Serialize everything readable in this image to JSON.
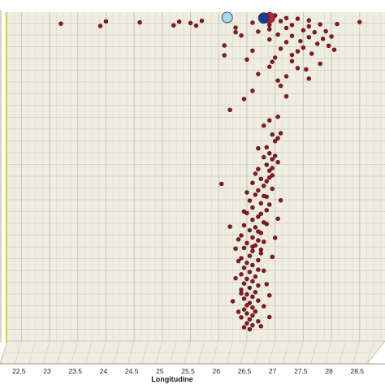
{
  "chart_data": {
    "type": "scatter",
    "xlabel": "Longitudine",
    "xlim": [
      22.25,
      28.95
    ],
    "ylim": [
      0,
      100
    ],
    "x_ticks": [
      "22.5",
      "23",
      "23.5",
      "24",
      "24.5",
      "25",
      "25.5",
      "26",
      "26.5",
      "27",
      "27.5",
      "28",
      "28.5"
    ],
    "grid": true,
    "colors": {
      "background": "#efece2",
      "grid": "#cfcbbd",
      "axis": "#d9d24a",
      "points": "#8a1a22",
      "points_edge": "#4a0a0e",
      "highlight_light": "#a8d8f0",
      "highlight_dark": "#1e3c8c",
      "highlight_red": "#c8202a"
    },
    "series": [
      {
        "role": "main-points",
        "points": [
          [
            23.2,
            96.5
          ],
          [
            23.9,
            95.8
          ],
          [
            24.0,
            97.2
          ],
          [
            24.6,
            96.9
          ],
          [
            25.2,
            96.0
          ],
          [
            25.3,
            97.1
          ],
          [
            25.5,
            96.7
          ],
          [
            25.6,
            95.9
          ],
          [
            25.7,
            97.4
          ],
          [
            26.6,
            96.8
          ],
          [
            26.8,
            97.9
          ],
          [
            27.1,
            97.3
          ],
          [
            27.3,
            96.1
          ],
          [
            27.4,
            98.0
          ],
          [
            27.6,
            97.5
          ],
          [
            27.8,
            96.3
          ],
          [
            28.1,
            96.4
          ],
          [
            28.5,
            97.0
          ],
          [
            26.9,
            94.8
          ],
          [
            27.2,
            95.2
          ],
          [
            27.5,
            94.5
          ],
          [
            27.7,
            93.9
          ],
          [
            27.9,
            94.2
          ],
          [
            26.7,
            94.1
          ],
          [
            27.05,
            93.2
          ],
          [
            27.3,
            92.8
          ],
          [
            27.6,
            92.4
          ],
          [
            27.85,
            91.9
          ],
          [
            28.0,
            92.6
          ],
          [
            26.4,
            92.9
          ],
          [
            26.9,
            91.7
          ],
          [
            27.2,
            90.9
          ],
          [
            27.45,
            91.2
          ],
          [
            27.75,
            90.4
          ],
          [
            27.95,
            89.8
          ],
          [
            26.6,
            88.3
          ],
          [
            27.1,
            88.9
          ],
          [
            27.4,
            88.1
          ],
          [
            27.65,
            87.4
          ],
          [
            28.05,
            88.6
          ],
          [
            26.5,
            85.6
          ],
          [
            27.0,
            86.2
          ],
          [
            27.3,
            85.1
          ],
          [
            27.8,
            84.3
          ],
          [
            26.9,
            83.4
          ],
          [
            27.55,
            82.6
          ],
          [
            26.7,
            81.2
          ],
          [
            27.2,
            80.5
          ],
          [
            27.6,
            79.8
          ],
          [
            27.1,
            77.6
          ],
          [
            26.1,
            86.9
          ],
          [
            26.3,
            93.9
          ],
          [
            26.9,
            96.1
          ],
          [
            27.2,
            98.2
          ],
          [
            27.6,
            95.7
          ],
          [
            27.5,
            89.2
          ],
          [
            27.3,
            87.0
          ],
          [
            26.95,
            84.9
          ],
          [
            27.4,
            83.0
          ],
          [
            27.05,
            79.2
          ],
          [
            26.8,
            65.5
          ],
          [
            27.1,
            63.2
          ],
          [
            27.0,
            60.8
          ],
          [
            26.7,
            58.6
          ],
          [
            26.9,
            57.1
          ],
          [
            26.95,
            55.3
          ],
          [
            26.85,
            53.6
          ],
          [
            26.9,
            51.8
          ],
          [
            26.95,
            50.4
          ],
          [
            26.75,
            49.3
          ],
          [
            26.6,
            48.1
          ],
          [
            26.8,
            47.2
          ],
          [
            26.7,
            45.8
          ],
          [
            26.65,
            44.5
          ],
          [
            26.85,
            43.9
          ],
          [
            26.55,
            42.7
          ],
          [
            26.75,
            41.9
          ],
          [
            26.6,
            40.6
          ],
          [
            26.85,
            39.8
          ],
          [
            26.5,
            38.9
          ],
          [
            26.7,
            37.8
          ],
          [
            26.6,
            36.9
          ],
          [
            26.8,
            36.1
          ],
          [
            26.45,
            35.2
          ],
          [
            26.65,
            34.6
          ],
          [
            26.55,
            33.7
          ],
          [
            26.75,
            32.9
          ],
          [
            26.4,
            32.1
          ],
          [
            26.6,
            31.5
          ],
          [
            26.7,
            30.6
          ],
          [
            26.5,
            29.8
          ],
          [
            26.65,
            29.1
          ],
          [
            26.45,
            28.3
          ],
          [
            26.6,
            27.4
          ],
          [
            26.75,
            26.7
          ],
          [
            26.55,
            25.9
          ],
          [
            26.4,
            25.2
          ],
          [
            26.7,
            24.6
          ],
          [
            26.5,
            23.8
          ],
          [
            26.6,
            23.1
          ],
          [
            26.45,
            22.3
          ],
          [
            26.7,
            21.7
          ],
          [
            26.55,
            21.0
          ],
          [
            26.4,
            20.3
          ],
          [
            26.65,
            19.6
          ],
          [
            26.5,
            18.9
          ],
          [
            26.6,
            18.2
          ],
          [
            26.45,
            17.5
          ],
          [
            26.7,
            16.9
          ],
          [
            26.55,
            16.2
          ],
          [
            26.4,
            15.6
          ],
          [
            26.65,
            14.9
          ],
          [
            26.5,
            14.2
          ],
          [
            26.6,
            13.5
          ],
          [
            26.45,
            12.9
          ],
          [
            26.7,
            12.3
          ],
          [
            26.55,
            11.6
          ],
          [
            26.5,
            10.9
          ],
          [
            26.6,
            10.2
          ],
          [
            26.45,
            9.6
          ],
          [
            26.65,
            9.0
          ],
          [
            26.5,
            8.4
          ],
          [
            26.6,
            7.8
          ],
          [
            26.4,
            7.2
          ],
          [
            26.55,
            6.6
          ],
          [
            26.7,
            6.0
          ],
          [
            26.5,
            5.4
          ],
          [
            26.6,
            4.8
          ],
          [
            26.45,
            4.2
          ],
          [
            26.55,
            3.6
          ],
          [
            26.85,
            48.6
          ],
          [
            26.95,
            46.3
          ],
          [
            26.8,
            44.1
          ],
          [
            26.9,
            41.5
          ],
          [
            26.75,
            38.7
          ],
          [
            26.85,
            35.6
          ],
          [
            26.7,
            33.3
          ],
          [
            26.8,
            30.2
          ],
          [
            26.6,
            28.7
          ],
          [
            26.75,
            27.8
          ],
          [
            26.9,
            49.7
          ],
          [
            26.95,
            52.6
          ],
          [
            27.05,
            54.4
          ],
          [
            27.0,
            56.3
          ],
          [
            26.85,
            58.9
          ],
          [
            27.05,
            61.7
          ],
          [
            26.95,
            62.8
          ],
          [
            26.8,
            55.9
          ],
          [
            26.7,
            52.3
          ],
          [
            26.65,
            50.9
          ],
          [
            26.35,
            24.3
          ],
          [
            26.3,
            19.1
          ],
          [
            26.4,
            14.5
          ],
          [
            26.35,
            8.9
          ],
          [
            26.8,
            21.4
          ],
          [
            26.85,
            17.3
          ],
          [
            26.9,
            13.9
          ],
          [
            26.8,
            10.6
          ],
          [
            26.9,
            7.3
          ],
          [
            26.75,
            4.5
          ],
          [
            26.2,
            34.8
          ],
          [
            26.3,
            28.1
          ],
          [
            26.95,
            25.6
          ],
          [
            27.0,
            31.4
          ],
          [
            27.05,
            37.2
          ],
          [
            27.1,
            42.8
          ],
          [
            26.5,
            45.2
          ],
          [
            26.45,
            39.4
          ],
          [
            26.35,
            30.9
          ],
          [
            26.25,
            12.1
          ],
          [
            26.05,
            47.8
          ],
          [
            26.2,
            70.3
          ],
          [
            26.45,
            73.6
          ],
          [
            27.05,
            68.2
          ],
          [
            26.9,
            67.1
          ],
          [
            26.6,
            76.1
          ],
          [
            27.2,
            74.4
          ],
          [
            26.1,
            89.9
          ],
          [
            26.3,
            95.3
          ],
          [
            27.0,
            99.0
          ]
        ]
      },
      {
        "role": "highlight-points",
        "points": [
          {
            "x": 26.15,
            "y": 98.4,
            "color": "#a8d8f0"
          },
          {
            "x": 26.9,
            "y": 98.3,
            "color": "#c8202a"
          },
          {
            "x": 26.8,
            "y": 98.2,
            "color": "#1e3c8c"
          }
        ]
      }
    ]
  }
}
